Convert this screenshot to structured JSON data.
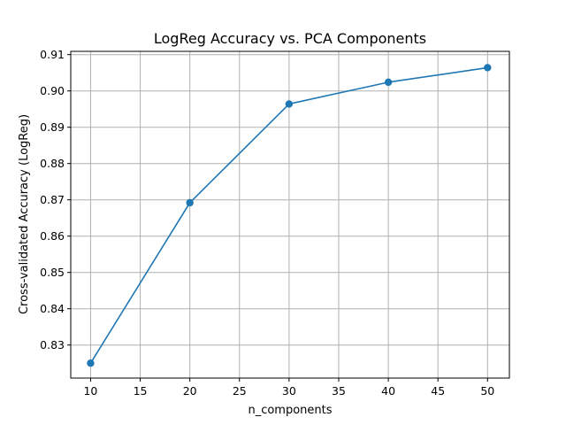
{
  "chart_data": {
    "type": "line",
    "title": "LogReg Accuracy vs. PCA Components",
    "xlabel": "n_components",
    "ylabel": "Cross-validated Accuracy (LogReg)",
    "x": [
      10,
      20,
      30,
      40,
      50
    ],
    "series": [
      {
        "values": [
          0.825,
          0.8692,
          0.8964,
          0.9024,
          0.9064
        ]
      }
    ],
    "xlim": [
      8,
      52.2
    ],
    "ylim": [
      0.8209,
      0.9109
    ],
    "xticks": [
      10,
      15,
      20,
      25,
      30,
      35,
      40,
      45,
      50
    ],
    "xtick_labels": [
      "10",
      "15",
      "20",
      "25",
      "30",
      "35",
      "40",
      "45",
      "50"
    ],
    "yticks": [
      0.83,
      0.84,
      0.85,
      0.86,
      0.87,
      0.88,
      0.89,
      0.9,
      0.91
    ],
    "ytick_labels": [
      "0.83",
      "0.84",
      "0.85",
      "0.86",
      "0.87",
      "0.88",
      "0.89",
      "0.90",
      "0.91"
    ],
    "grid": true,
    "line_color": "#1f77b4",
    "marker": "circle"
  }
}
